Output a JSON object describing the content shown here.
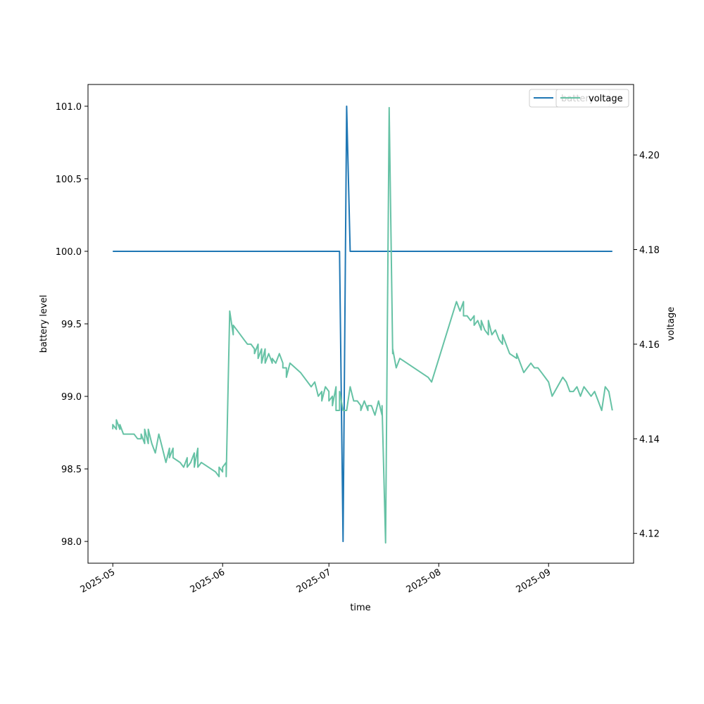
{
  "chart_data": {
    "type": "line",
    "xlabel": "time",
    "ylabel_left": "battery level",
    "ylabel_right": "voltage",
    "grid": false,
    "legend_placement": "top-right",
    "x_axis": {
      "type": "date",
      "range": [
        "2025-04-24",
        "2025-09-25"
      ],
      "ticks": [
        "2025-05-01",
        "2025-06-01",
        "2025-07-01",
        "2025-08-01",
        "2025-09-01"
      ],
      "tick_labels": [
        "2025-05",
        "2025-06",
        "2025-07",
        "2025-08",
        "2025-09"
      ]
    },
    "y_left": {
      "range": [
        97.85,
        101.15
      ],
      "ticks": [
        98.0,
        98.5,
        99.0,
        99.5,
        100.0,
        100.5,
        101.0
      ],
      "tick_labels": [
        "98.0",
        "98.5",
        "99.0",
        "99.5",
        "100.0",
        "100.5",
        "101.0"
      ]
    },
    "y_right": {
      "range": [
        4.1137,
        4.2149
      ],
      "ticks": [
        4.12,
        4.14,
        4.16,
        4.18,
        4.2
      ],
      "tick_labels": [
        "4.12",
        "4.14",
        "4.16",
        "4.18",
        "4.20"
      ]
    },
    "series": [
      {
        "name": "battery",
        "axis": "left",
        "color": "#1f77b4",
        "points": [
          [
            "2025-05-01",
            100.0
          ],
          [
            "2025-07-04",
            100.0
          ],
          [
            "2025-07-05",
            98.0
          ],
          [
            "2025-07-06",
            101.0
          ],
          [
            "2025-07-07",
            100.0
          ],
          [
            "2025-09-19",
            100.0
          ]
        ]
      },
      {
        "name": "voltage",
        "axis": "right",
        "color": "#66c2a5",
        "points": [
          [
            "2025-05-01",
            4.142
          ],
          [
            "2025-05-01",
            4.143
          ],
          [
            "2025-05-02",
            4.142
          ],
          [
            "2025-05-02",
            4.144
          ],
          [
            "2025-05-03",
            4.142
          ],
          [
            "2025-05-03",
            4.143
          ],
          [
            "2025-05-04",
            4.141
          ],
          [
            "2025-05-06",
            4.141
          ],
          [
            "2025-05-07",
            4.141
          ],
          [
            "2025-05-08",
            4.14
          ],
          [
            "2025-05-09",
            4.14
          ],
          [
            "2025-05-09",
            4.141
          ],
          [
            "2025-05-10",
            4.139
          ],
          [
            "2025-05-10",
            4.142
          ],
          [
            "2025-05-11",
            4.139
          ],
          [
            "2025-05-11",
            4.142
          ],
          [
            "2025-05-12",
            4.139
          ],
          [
            "2025-05-13",
            4.137
          ],
          [
            "2025-05-14",
            4.141
          ],
          [
            "2025-05-15",
            4.138
          ],
          [
            "2025-05-16",
            4.135
          ],
          [
            "2025-05-17",
            4.138
          ],
          [
            "2025-05-17",
            4.136
          ],
          [
            "2025-05-18",
            4.138
          ],
          [
            "2025-05-18",
            4.136
          ],
          [
            "2025-05-20",
            4.135
          ],
          [
            "2025-05-21",
            4.134
          ],
          [
            "2025-05-22",
            4.136
          ],
          [
            "2025-05-22",
            4.134
          ],
          [
            "2025-05-23",
            4.135
          ],
          [
            "2025-05-24",
            4.137
          ],
          [
            "2025-05-24",
            4.134
          ],
          [
            "2025-05-25",
            4.138
          ],
          [
            "2025-05-25",
            4.134
          ],
          [
            "2025-05-26",
            4.135
          ],
          [
            "2025-05-30",
            4.133
          ],
          [
            "2025-05-31",
            4.132
          ],
          [
            "2025-05-31",
            4.134
          ],
          [
            "2025-06-01",
            4.133
          ],
          [
            "2025-06-01",
            4.134
          ],
          [
            "2025-06-02",
            4.135
          ],
          [
            "2025-06-02",
            4.132
          ],
          [
            "2025-06-03",
            4.167
          ],
          [
            "2025-06-04",
            4.162
          ],
          [
            "2025-06-04",
            4.164
          ],
          [
            "2025-06-05",
            4.163
          ],
          [
            "2025-06-07",
            4.161
          ],
          [
            "2025-06-08",
            4.16
          ],
          [
            "2025-06-09",
            4.16
          ],
          [
            "2025-06-10",
            4.159
          ],
          [
            "2025-06-10",
            4.158
          ],
          [
            "2025-06-11",
            4.16
          ],
          [
            "2025-06-11",
            4.157
          ],
          [
            "2025-06-12",
            4.159
          ],
          [
            "2025-06-12",
            4.156
          ],
          [
            "2025-06-13",
            4.159
          ],
          [
            "2025-06-13",
            4.156
          ],
          [
            "2025-06-14",
            4.158
          ],
          [
            "2025-06-15",
            4.156
          ],
          [
            "2025-06-15",
            4.157
          ],
          [
            "2025-06-16",
            4.156
          ],
          [
            "2025-06-17",
            4.158
          ],
          [
            "2025-06-18",
            4.156
          ],
          [
            "2025-06-18",
            4.155
          ],
          [
            "2025-06-19",
            4.155
          ],
          [
            "2025-06-19",
            4.153
          ],
          [
            "2025-06-20",
            4.156
          ],
          [
            "2025-06-23",
            4.154
          ],
          [
            "2025-06-26",
            4.151
          ],
          [
            "2025-06-27",
            4.152
          ],
          [
            "2025-06-28",
            4.149
          ],
          [
            "2025-06-29",
            4.15
          ],
          [
            "2025-06-29",
            4.148
          ],
          [
            "2025-06-30",
            4.151
          ],
          [
            "2025-07-01",
            4.15
          ],
          [
            "2025-07-01",
            4.148
          ],
          [
            "2025-07-02",
            4.149
          ],
          [
            "2025-07-02",
            4.147
          ],
          [
            "2025-07-03",
            4.151
          ],
          [
            "2025-07-03",
            4.146
          ],
          [
            "2025-07-04",
            4.146
          ],
          [
            "2025-07-04",
            4.15
          ],
          [
            "2025-07-05",
            4.146
          ],
          [
            "2025-07-06",
            4.146
          ],
          [
            "2025-07-07",
            4.151
          ],
          [
            "2025-07-08",
            4.148
          ],
          [
            "2025-07-09",
            4.148
          ],
          [
            "2025-07-10",
            4.147
          ],
          [
            "2025-07-10",
            4.146
          ],
          [
            "2025-07-11",
            4.148
          ],
          [
            "2025-07-11",
            4.148
          ],
          [
            "2025-07-12",
            4.146
          ],
          [
            "2025-07-12",
            4.147
          ],
          [
            "2025-07-13",
            4.147
          ],
          [
            "2025-07-14",
            4.145
          ],
          [
            "2025-07-15",
            4.148
          ],
          [
            "2025-07-16",
            4.145
          ],
          [
            "2025-07-16",
            4.147
          ],
          [
            "2025-07-17",
            4.118
          ],
          [
            "2025-07-18",
            4.21
          ],
          [
            "2025-07-19",
            4.158
          ],
          [
            "2025-07-19",
            4.159
          ],
          [
            "2025-07-20",
            4.155
          ],
          [
            "2025-07-21",
            4.157
          ],
          [
            "2025-07-29",
            4.153
          ],
          [
            "2025-07-30",
            4.152
          ],
          [
            "2025-08-06",
            4.169
          ],
          [
            "2025-08-07",
            4.167
          ],
          [
            "2025-08-08",
            4.169
          ],
          [
            "2025-08-08",
            4.166
          ],
          [
            "2025-08-09",
            4.166
          ],
          [
            "2025-08-10",
            4.165
          ],
          [
            "2025-08-11",
            4.166
          ],
          [
            "2025-08-11",
            4.164
          ],
          [
            "2025-08-12",
            4.165
          ],
          [
            "2025-08-13",
            4.163
          ],
          [
            "2025-08-13",
            4.165
          ],
          [
            "2025-08-14",
            4.163
          ],
          [
            "2025-08-15",
            4.162
          ],
          [
            "2025-08-15",
            4.165
          ],
          [
            "2025-08-16",
            4.162
          ],
          [
            "2025-08-17",
            4.163
          ],
          [
            "2025-08-18",
            4.161
          ],
          [
            "2025-08-19",
            4.16
          ],
          [
            "2025-08-19",
            4.162
          ],
          [
            "2025-08-20",
            4.16
          ],
          [
            "2025-08-21",
            4.158
          ],
          [
            "2025-08-23",
            4.157
          ],
          [
            "2025-08-23",
            4.158
          ],
          [
            "2025-08-25",
            4.154
          ],
          [
            "2025-08-26",
            4.155
          ],
          [
            "2025-08-27",
            4.156
          ],
          [
            "2025-08-28",
            4.155
          ],
          [
            "2025-08-29",
            4.155
          ],
          [
            "2025-08-30",
            4.154
          ],
          [
            "2025-08-31",
            4.153
          ],
          [
            "2025-09-01",
            4.152
          ],
          [
            "2025-09-02",
            4.149
          ],
          [
            "2025-09-05",
            4.153
          ],
          [
            "2025-09-06",
            4.152
          ],
          [
            "2025-09-07",
            4.15
          ],
          [
            "2025-09-08",
            4.15
          ],
          [
            "2025-09-09",
            4.151
          ],
          [
            "2025-09-10",
            4.149
          ],
          [
            "2025-09-11",
            4.151
          ],
          [
            "2025-09-12",
            4.15
          ],
          [
            "2025-09-13",
            4.149
          ],
          [
            "2025-09-14",
            4.15
          ],
          [
            "2025-09-15",
            4.148
          ],
          [
            "2025-09-16",
            4.146
          ],
          [
            "2025-09-17",
            4.151
          ],
          [
            "2025-09-18",
            4.15
          ],
          [
            "2025-09-19",
            4.146
          ]
        ]
      }
    ]
  },
  "legend": {
    "left_box_text": "battery",
    "right_box_text": "voltage"
  }
}
